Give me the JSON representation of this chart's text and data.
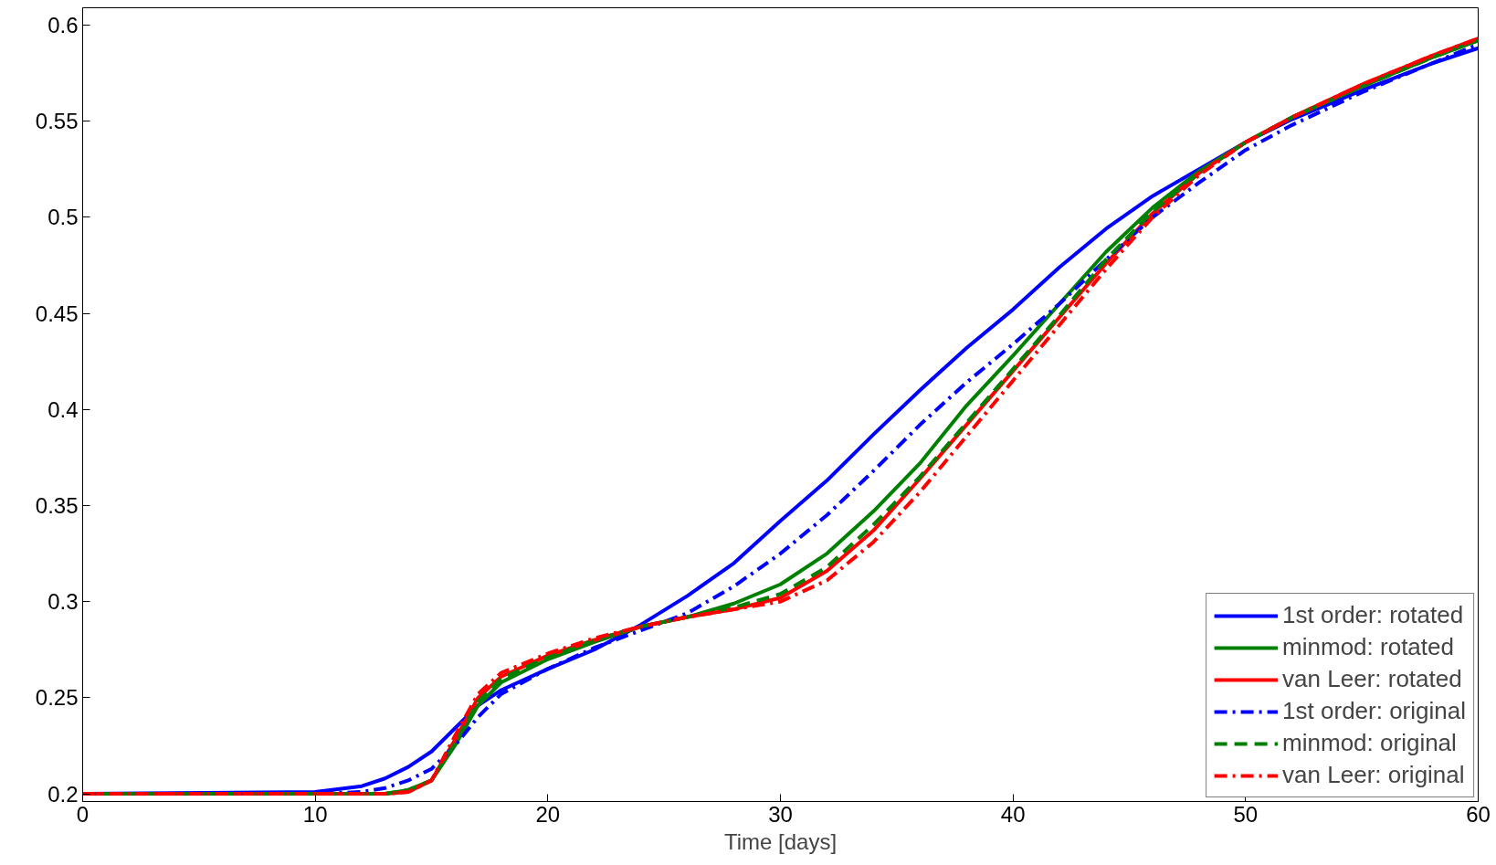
{
  "chart_data": {
    "type": "line",
    "xlabel": "Time [days]",
    "xlim": [
      0,
      60
    ],
    "xticks": [
      0,
      10,
      20,
      30,
      40,
      50,
      60
    ],
    "ylim": [
      0.196,
      0.609
    ],
    "yticks": [
      0.2,
      0.25,
      0.3,
      0.35,
      0.4,
      0.45,
      0.5,
      0.55,
      0.6
    ],
    "grid": false,
    "legend": "bottom right",
    "marker": "none",
    "x": [
      0,
      10,
      12,
      13,
      14,
      15,
      16,
      17,
      18,
      20,
      22,
      24,
      26,
      28,
      30,
      32,
      34,
      36,
      38,
      40,
      42,
      44,
      46,
      48,
      50,
      52,
      55,
      58,
      60
    ],
    "series": [
      {
        "name": "1st order: rotated",
        "color": "#0000ff",
        "line_style": "solid",
        "values": [
          0.2,
          0.201,
          0.204,
          0.208,
          0.214,
          0.222,
          0.234,
          0.246,
          0.254,
          0.265,
          0.275,
          0.288,
          0.303,
          0.32,
          0.342,
          0.363,
          0.387,
          0.41,
          0.432,
          0.452,
          0.474,
          0.494,
          0.511,
          0.525,
          0.539,
          0.551,
          0.566,
          0.58,
          0.588
        ]
      },
      {
        "name": "minmod: rotated",
        "color": "#008000",
        "line_style": "solid",
        "values": [
          0.2,
          0.2,
          0.2,
          0.2,
          0.202,
          0.207,
          0.225,
          0.246,
          0.258,
          0.27,
          0.279,
          0.287,
          0.292,
          0.299,
          0.309,
          0.325,
          0.347,
          0.372,
          0.402,
          0.428,
          0.455,
          0.482,
          0.505,
          0.524,
          0.539,
          0.552,
          0.568,
          0.583,
          0.592
        ]
      },
      {
        "name": "van Leer: rotated",
        "color": "#ff0000",
        "line_style": "solid",
        "values": [
          0.2,
          0.2,
          0.2,
          0.2,
          0.201,
          0.207,
          0.228,
          0.25,
          0.261,
          0.272,
          0.28,
          0.287,
          0.292,
          0.296,
          0.302,
          0.316,
          0.337,
          0.364,
          0.392,
          0.42,
          0.448,
          0.476,
          0.502,
          0.523,
          0.539,
          0.552,
          0.569,
          0.584,
          0.593
        ]
      },
      {
        "name": "1st order: original",
        "color": "#0000ff",
        "line_style": "dashdot",
        "values": [
          0.2,
          0.2,
          0.201,
          0.203,
          0.207,
          0.213,
          0.225,
          0.24,
          0.252,
          0.265,
          0.276,
          0.285,
          0.294,
          0.308,
          0.325,
          0.345,
          0.368,
          0.392,
          0.414,
          0.434,
          0.455,
          0.478,
          0.5,
          0.518,
          0.535,
          0.548,
          0.565,
          0.58,
          0.59
        ]
      },
      {
        "name": "minmod: original",
        "color": "#008000",
        "line_style": "dashed",
        "values": [
          0.2,
          0.2,
          0.2,
          0.2,
          0.202,
          0.207,
          0.226,
          0.248,
          0.26,
          0.271,
          0.28,
          0.287,
          0.292,
          0.297,
          0.304,
          0.318,
          0.34,
          0.365,
          0.393,
          0.421,
          0.449,
          0.478,
          0.503,
          0.523,
          0.539,
          0.552,
          0.568,
          0.583,
          0.592
        ]
      },
      {
        "name": "van Leer: original",
        "color": "#ff0000",
        "line_style": "dashdot",
        "values": [
          0.2,
          0.2,
          0.2,
          0.2,
          0.201,
          0.207,
          0.23,
          0.252,
          0.263,
          0.273,
          0.281,
          0.287,
          0.292,
          0.296,
          0.3,
          0.311,
          0.331,
          0.357,
          0.386,
          0.415,
          0.444,
          0.473,
          0.5,
          0.522,
          0.539,
          0.552,
          0.569,
          0.584,
          0.593
        ]
      }
    ]
  }
}
